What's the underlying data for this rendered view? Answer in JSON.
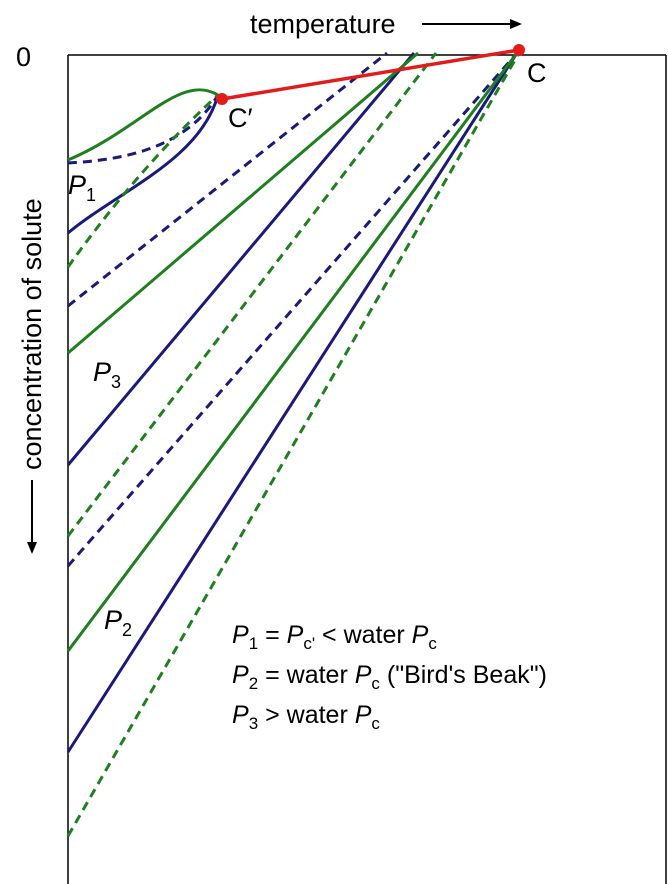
{
  "diagram": {
    "axis_top_label": "temperature",
    "axis_origin_label": "0",
    "axis_left_label": "concentration of solute",
    "point_c": "C",
    "point_c_prime": "C′",
    "label_p1": {
      "letter": "P",
      "subscript": "1"
    },
    "label_p2": {
      "letter": "P",
      "subscript": "2"
    },
    "label_p3": {
      "letter": "P",
      "subscript": "3"
    },
    "legend": {
      "line1": {
        "p": "P",
        "p_sub": "1",
        "eq": " = ",
        "pc": "P",
        "pc_sub": "c'",
        "rest": " < water ",
        "w": "P",
        "w_sub": "c"
      },
      "line2": {
        "p": "P",
        "p_sub": "2",
        "rest": " = water ",
        "w": "P",
        "w_sub": "c",
        "tail": " (\"Bird's Beak\")"
      },
      "line3": {
        "p": "P",
        "p_sub": "3",
        "rest": " > water ",
        "w": "P",
        "w_sub": "c"
      }
    },
    "colors": {
      "navy": "#1a1a7a",
      "green": "#1f7f1f",
      "red": "#e31b1b",
      "axis": "#000000"
    }
  }
}
